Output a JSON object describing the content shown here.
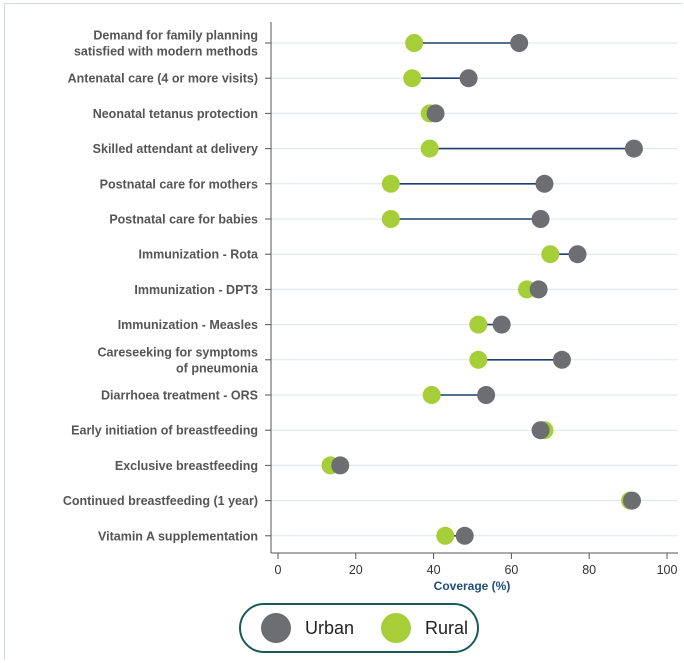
{
  "colors": {
    "urban": "#6d6e71",
    "rural": "#a6ce39",
    "connector": "#1f3f6e",
    "grid": "#dbe7ea",
    "axis": "#555555"
  },
  "chart_data": {
    "type": "dumbbell",
    "title": "",
    "xlabel": "Coverage (%)",
    "ylabel": "",
    "xlim": [
      0,
      100
    ],
    "xticks": [
      0,
      20,
      40,
      60,
      80,
      100
    ],
    "grid": true,
    "legend_position": "bottom",
    "categories": [
      [
        "Demand for family planning",
        "satisfied with modern methods"
      ],
      [
        "Antenatal care (4 or more visits)"
      ],
      [
        "Neonatal tetanus protection"
      ],
      [
        "Skilled attendant at delivery"
      ],
      [
        "Postnatal care for mothers"
      ],
      [
        "Postnatal care for babies"
      ],
      [
        "Immunization - Rota"
      ],
      [
        "Immunization - DPT3"
      ],
      [
        "Immunization - Measles"
      ],
      [
        "Careseeking for symptoms",
        "of pneumonia"
      ],
      [
        "Diarrhoea treatment - ORS"
      ],
      [
        "Early initiation of breastfeeding"
      ],
      [
        "Exclusive breastfeeding"
      ],
      [
        "Continued breastfeeding (1 year)"
      ],
      [
        "Vitamin A supplementation"
      ]
    ],
    "series": [
      {
        "name": "Urban",
        "values": [
          62,
          49,
          40.5,
          91.5,
          68.5,
          67.5,
          77,
          67,
          57.5,
          73,
          53.5,
          67.5,
          16,
          91,
          48
        ]
      },
      {
        "name": "Rural",
        "values": [
          35,
          34.5,
          39,
          39,
          29,
          29,
          70,
          64,
          51.5,
          51.5,
          39.5,
          68.5,
          13.5,
          90.5,
          43
        ]
      }
    ]
  }
}
